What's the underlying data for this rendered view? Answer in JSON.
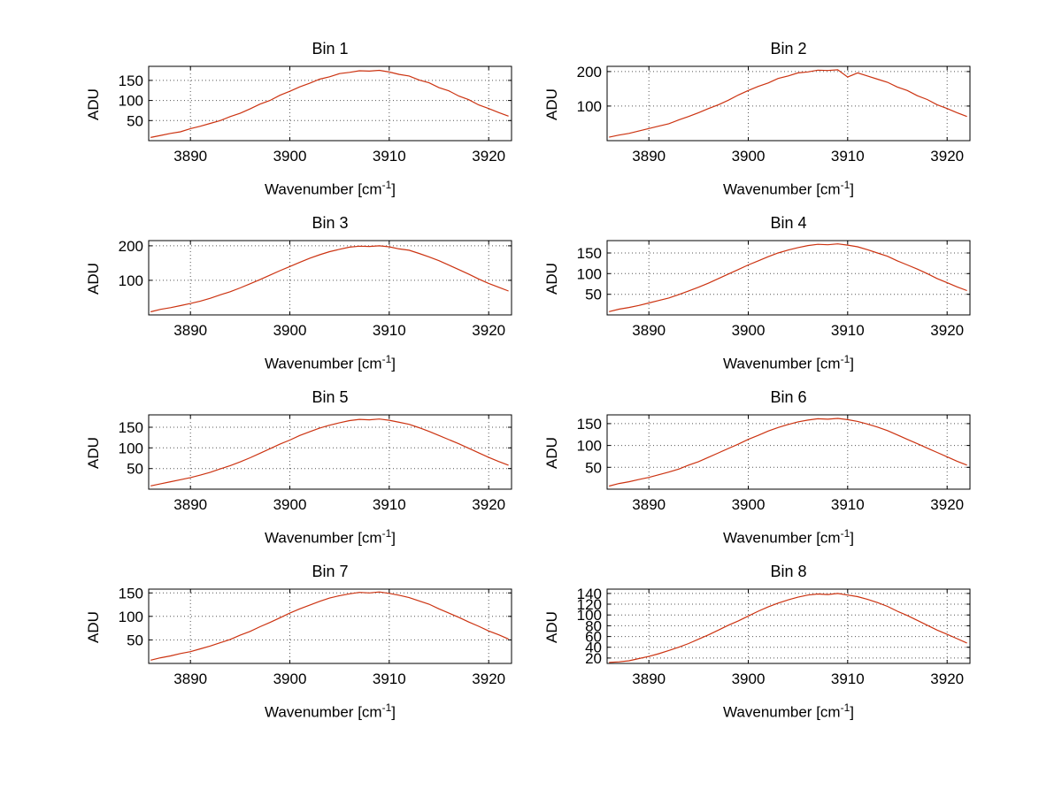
{
  "figure": {
    "background": "#ffffff"
  },
  "labels": {
    "ylabel": "ADU",
    "xlabel_base": "Wavenumber [cm",
    "xlabel_exp": "-1",
    "xlabel_close": "]"
  },
  "style": {
    "line_color": "#cc3311",
    "grid_color": "#555555",
    "axis_color": "#000000"
  },
  "chart_data": [
    {
      "type": "line",
      "title": "Bin 1",
      "xlabel": "Wavenumber [cm^-1]",
      "ylabel": "ADU",
      "xlim": [
        3885.8,
        3922.3
      ],
      "ylim": [
        0,
        185
      ],
      "xticks": [
        3890,
        3900,
        3910,
        3920
      ],
      "yticks": [
        50,
        100,
        150
      ],
      "x": [
        3886,
        3887,
        3888,
        3889,
        3890,
        3891,
        3892,
        3893,
        3894,
        3895,
        3896,
        3897,
        3898,
        3899,
        3900,
        3901,
        3902,
        3903,
        3904,
        3905,
        3906,
        3907,
        3908,
        3909,
        3910,
        3911,
        3912,
        3913,
        3914,
        3915,
        3916,
        3917,
        3918,
        3919,
        3920,
        3921,
        3922
      ],
      "y": [
        8,
        13,
        18,
        22,
        30,
        36,
        43,
        50,
        60,
        68,
        79,
        91,
        100,
        113,
        123,
        134,
        143,
        153,
        159,
        167,
        170,
        174,
        173,
        175,
        171,
        165,
        161,
        151,
        144,
        132,
        124,
        111,
        102,
        89,
        80,
        70,
        61
      ]
    },
    {
      "type": "line",
      "title": "Bin 2",
      "xlabel": "Wavenumber [cm^-1]",
      "ylabel": "ADU",
      "xlim": [
        3885.8,
        3922.3
      ],
      "ylim": [
        0,
        215
      ],
      "xticks": [
        3890,
        3900,
        3910,
        3920
      ],
      "yticks": [
        100,
        200
      ],
      "x": [
        3886,
        3887,
        3888,
        3889,
        3890,
        3891,
        3892,
        3893,
        3894,
        3895,
        3896,
        3897,
        3898,
        3899,
        3900,
        3901,
        3902,
        3903,
        3904,
        3905,
        3906,
        3907,
        3908,
        3909,
        3910,
        3911,
        3912,
        3913,
        3914,
        3915,
        3916,
        3917,
        3918,
        3919,
        3920,
        3921,
        3922
      ],
      "y": [
        10,
        16,
        21,
        28,
        35,
        42,
        49,
        60,
        70,
        81,
        93,
        104,
        117,
        132,
        145,
        157,
        167,
        180,
        187,
        196,
        199,
        204,
        203,
        205,
        184,
        196,
        187,
        178,
        169,
        155,
        145,
        130,
        119,
        104,
        93,
        81,
        70
      ]
    },
    {
      "type": "line",
      "title": "Bin 3",
      "xlabel": "Wavenumber [cm^-1]",
      "ylabel": "ADU",
      "xlim": [
        3885.8,
        3922.3
      ],
      "ylim": [
        0,
        215
      ],
      "xticks": [
        3890,
        3900,
        3910,
        3920
      ],
      "yticks": [
        100,
        200
      ],
      "x": [
        3886,
        3887,
        3888,
        3889,
        3890,
        3891,
        3892,
        3893,
        3894,
        3895,
        3896,
        3897,
        3898,
        3899,
        3900,
        3901,
        3902,
        3903,
        3904,
        3905,
        3906,
        3907,
        3908,
        3909,
        3910,
        3911,
        3912,
        3913,
        3914,
        3915,
        3916,
        3917,
        3918,
        3919,
        3920,
        3921,
        3922
      ],
      "y": [
        9,
        16,
        21,
        27,
        33,
        40,
        48,
        58,
        67,
        78,
        90,
        102,
        115,
        128,
        140,
        152,
        164,
        174,
        183,
        190,
        196,
        199,
        198,
        200,
        197,
        191,
        187,
        178,
        168,
        157,
        144,
        131,
        118,
        104,
        91,
        80,
        69
      ]
    },
    {
      "type": "line",
      "title": "Bin 4",
      "xlabel": "Wavenumber [cm^-1]",
      "ylabel": "ADU",
      "xlim": [
        3885.8,
        3922.3
      ],
      "ylim": [
        0,
        180
      ],
      "xticks": [
        3890,
        3900,
        3910,
        3920
      ],
      "yticks": [
        50,
        100,
        150
      ],
      "x": [
        3886,
        3887,
        3888,
        3889,
        3890,
        3891,
        3892,
        3893,
        3894,
        3895,
        3896,
        3897,
        3898,
        3899,
        3900,
        3901,
        3902,
        3903,
        3904,
        3905,
        3906,
        3907,
        3908,
        3909,
        3910,
        3911,
        3912,
        3913,
        3914,
        3915,
        3916,
        3917,
        3918,
        3919,
        3920,
        3921,
        3922
      ],
      "y": [
        8,
        14,
        18,
        23,
        29,
        35,
        41,
        49,
        58,
        67,
        77,
        88,
        99,
        110,
        121,
        131,
        141,
        150,
        157,
        163,
        168,
        171,
        170,
        172,
        169,
        165,
        158,
        150,
        142,
        131,
        121,
        111,
        100,
        88,
        78,
        68,
        59
      ]
    },
    {
      "type": "line",
      "title": "Bin 5",
      "xlabel": "Wavenumber [cm^-1]",
      "ylabel": "ADU",
      "xlim": [
        3885.8,
        3922.3
      ],
      "ylim": [
        0,
        180
      ],
      "xticks": [
        3890,
        3900,
        3910,
        3920
      ],
      "yticks": [
        50,
        100,
        150
      ],
      "x": [
        3886,
        3887,
        3888,
        3889,
        3890,
        3891,
        3892,
        3893,
        3894,
        3895,
        3896,
        3897,
        3898,
        3899,
        3900,
        3901,
        3902,
        3903,
        3904,
        3905,
        3906,
        3907,
        3908,
        3909,
        3910,
        3911,
        3912,
        3913,
        3914,
        3915,
        3916,
        3917,
        3918,
        3919,
        3920,
        3921,
        3922
      ],
      "y": [
        8,
        13,
        18,
        23,
        28,
        34,
        41,
        49,
        57,
        66,
        76,
        87,
        98,
        109,
        119,
        130,
        139,
        148,
        155,
        161,
        166,
        169,
        168,
        170,
        167,
        162,
        157,
        149,
        140,
        130,
        120,
        110,
        99,
        88,
        77,
        67,
        58
      ]
    },
    {
      "type": "line",
      "title": "Bin 6",
      "xlabel": "Wavenumber [cm^-1]",
      "ylabel": "ADU",
      "xlim": [
        3885.8,
        3922.3
      ],
      "ylim": [
        0,
        170
      ],
      "xticks": [
        3890,
        3900,
        3910,
        3920
      ],
      "yticks": [
        50,
        100,
        150
      ],
      "x": [
        3886,
        3887,
        3888,
        3889,
        3890,
        3891,
        3892,
        3893,
        3894,
        3895,
        3896,
        3897,
        3898,
        3899,
        3900,
        3901,
        3902,
        3903,
        3904,
        3905,
        3906,
        3907,
        3908,
        3909,
        3910,
        3911,
        3912,
        3913,
        3914,
        3915,
        3916,
        3917,
        3918,
        3919,
        3920,
        3921,
        3922
      ],
      "y": [
        7,
        13,
        17,
        22,
        27,
        33,
        39,
        46,
        55,
        63,
        73,
        83,
        93,
        103,
        114,
        123,
        133,
        141,
        148,
        154,
        158,
        161,
        160,
        162,
        159,
        155,
        149,
        142,
        134,
        124,
        114,
        104,
        94,
        84,
        74,
        64,
        55
      ]
    },
    {
      "type": "line",
      "title": "Bin 7",
      "xlabel": "Wavenumber [cm^-1]",
      "ylabel": "ADU",
      "xlim": [
        3885.8,
        3922.3
      ],
      "ylim": [
        0,
        158
      ],
      "xticks": [
        3890,
        3900,
        3910,
        3920
      ],
      "yticks": [
        50,
        100,
        150
      ],
      "x": [
        3886,
        3887,
        3888,
        3889,
        3890,
        3891,
        3892,
        3893,
        3894,
        3895,
        3896,
        3897,
        3898,
        3899,
        3900,
        3901,
        3902,
        3903,
        3904,
        3905,
        3906,
        3907,
        3908,
        3909,
        3910,
        3911,
        3912,
        3913,
        3914,
        3915,
        3916,
        3917,
        3918,
        3919,
        3920,
        3921,
        3922
      ],
      "y": [
        7,
        12,
        16,
        21,
        25,
        31,
        37,
        44,
        51,
        60,
        68,
        78,
        87,
        97,
        107,
        116,
        124,
        132,
        139,
        144,
        148,
        151,
        150,
        152,
        149,
        145,
        140,
        133,
        126,
        116,
        107,
        98,
        88,
        79,
        69,
        61,
        52
      ]
    },
    {
      "type": "line",
      "title": "Bin 8",
      "xlabel": "Wavenumber [cm^-1]",
      "ylabel": "ADU",
      "xlim": [
        3885.8,
        3922.3
      ],
      "ylim": [
        10,
        148
      ],
      "xticks": [
        3890,
        3900,
        3910,
        3920
      ],
      "yticks": [
        20,
        40,
        60,
        80,
        100,
        120,
        140
      ],
      "x": [
        3886,
        3887,
        3888,
        3889,
        3890,
        3891,
        3892,
        3893,
        3894,
        3895,
        3896,
        3897,
        3898,
        3899,
        3900,
        3901,
        3902,
        3903,
        3904,
        3905,
        3906,
        3907,
        3908,
        3909,
        3910,
        3911,
        3912,
        3913,
        3914,
        3915,
        3916,
        3917,
        3918,
        3919,
        3920,
        3921,
        3922
      ],
      "y": [
        12,
        13,
        15,
        19,
        23,
        28,
        34,
        40,
        47,
        55,
        63,
        72,
        81,
        89,
        98,
        107,
        115,
        122,
        128,
        133,
        137,
        139,
        138,
        140,
        137,
        134,
        129,
        123,
        116,
        107,
        99,
        90,
        81,
        72,
        64,
        56,
        48
      ]
    }
  ]
}
